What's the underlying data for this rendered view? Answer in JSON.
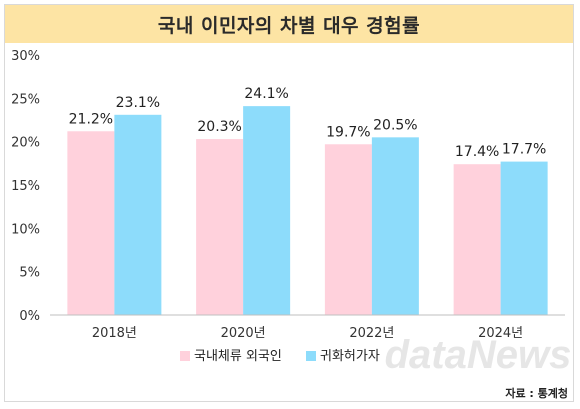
{
  "title": "국내 이민자의 차별 대우 경험률",
  "source": "자료 : 통계청",
  "watermark": "dataNews",
  "colors": {
    "title_band": "#fde4a4",
    "series_1": "#ffd1dc",
    "series_2": "#8ddcfb",
    "axis_text": "#333333"
  },
  "chart_data": {
    "type": "bar",
    "categories": [
      "2018년",
      "2020년",
      "2022년",
      "2024년"
    ],
    "series": [
      {
        "name": "국내체류 외국인",
        "values": [
          21.2,
          20.3,
          19.7,
          17.4
        ],
        "labels": [
          "21.2%",
          "20.3%",
          "19.7%",
          "17.4%"
        ]
      },
      {
        "name": "귀화허가자",
        "values": [
          23.1,
          24.1,
          20.5,
          17.7
        ],
        "labels": [
          "23.1%",
          "24.1%",
          "20.5%",
          "17.7%"
        ]
      }
    ],
    "ylim": [
      0,
      30
    ],
    "yticks": [
      0,
      5,
      10,
      15,
      20,
      25,
      30
    ],
    "ytick_labels": [
      "0%",
      "5%",
      "10%",
      "15%",
      "20%",
      "25%",
      "30%"
    ],
    "grid": false,
    "legend_position": "bottom"
  }
}
